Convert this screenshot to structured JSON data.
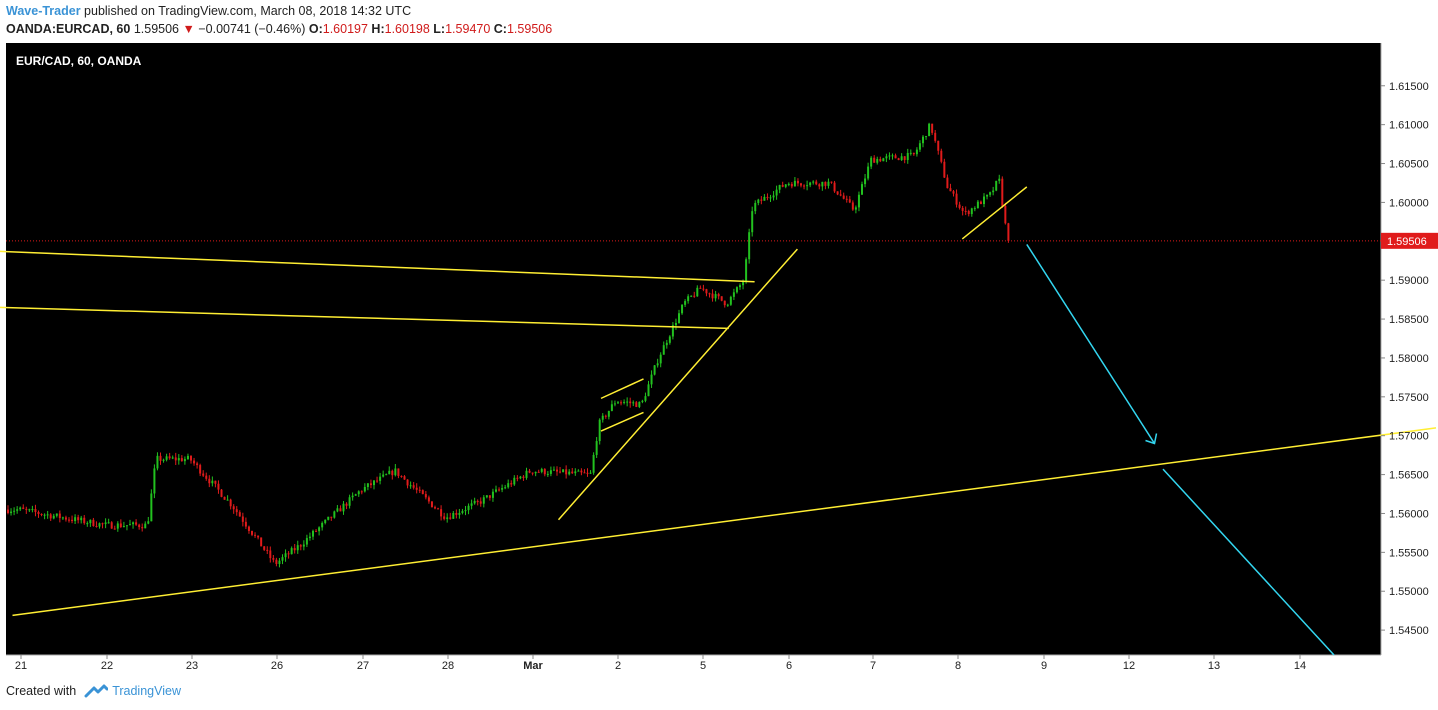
{
  "header": {
    "author": "Wave-Trader",
    "published_text": " published on TradingView.com, March 08, 2018 14:32 UTC",
    "symbol": "OANDA:EURCAD, 60",
    "last": "1.59506",
    "change": "−0.00741 (−0.46%)",
    "o_label": "O:",
    "o_val": "1.60197",
    "h_label": "H:",
    "h_val": "1.60198",
    "l_label": "L:",
    "l_val": "1.59470",
    "c_label": "C:",
    "c_val": "1.59506"
  },
  "footer": {
    "created_with": "Created with",
    "brand": "TradingView"
  },
  "colors": {
    "bull": "#22c11f",
    "bear": "#e01b1b",
    "background": "#000000",
    "trendline": "#ffee33",
    "projection": "#33d6f0",
    "price_tag": "#e01b1b"
  },
  "chart_data": {
    "type": "candlestick",
    "title": "EUR/CAD, 60, OANDA",
    "current_price": 1.59506,
    "current_price_label": "1.59506",
    "y_ticks": [
      "1.61500",
      "1.61000",
      "1.60500",
      "1.60000",
      "1.59000",
      "1.58500",
      "1.58000",
      "1.57500",
      "1.57000",
      "1.56500",
      "1.56000",
      "1.55500",
      "1.55000",
      "1.54500"
    ],
    "y_tick_values": [
      1.615,
      1.61,
      1.605,
      1.6,
      1.59,
      1.585,
      1.58,
      1.575,
      1.57,
      1.565,
      1.56,
      1.555,
      1.55,
      1.545
    ],
    "ylim": [
      1.5418,
      1.6205
    ],
    "x_ticks": [
      "21",
      "22",
      "23",
      "26",
      "27",
      "28",
      "Mar",
      "2",
      "5",
      "6",
      "7",
      "8",
      "9",
      "12",
      "13",
      "14"
    ],
    "price_anchors": [
      {
        "t": "21",
        "p": 1.5605
      },
      {
        "t": "22",
        "p": 1.5585
      },
      {
        "t": "22.5",
        "p": 1.5585
      },
      {
        "t": "22.6",
        "p": 1.567
      },
      {
        "t": "23",
        "p": 1.567
      },
      {
        "t": "23.5",
        "p": 1.561
      },
      {
        "t": "26",
        "p": 1.5535
      },
      {
        "t": "26.3",
        "p": 1.556
      },
      {
        "t": "27",
        "p": 1.563
      },
      {
        "t": "27.4",
        "p": 1.5655
      },
      {
        "t": "28",
        "p": 1.5595
      },
      {
        "t": "28.4",
        "p": 1.5615
      },
      {
        "t": "Mar",
        "p": 1.5655
      },
      {
        "t": "Mar+0.7",
        "p": 1.565
      },
      {
        "t": "Mar+0.8",
        "p": 1.5715
      },
      {
        "t": "2",
        "p": 1.5745
      },
      {
        "t": "2.3",
        "p": 1.574
      },
      {
        "t": "2.5",
        "p": 1.58
      },
      {
        "t": "2.8",
        "p": 1.587
      },
      {
        "t": "5",
        "p": 1.589
      },
      {
        "t": "5.3",
        "p": 1.587
      },
      {
        "t": "5.5",
        "p": 1.59
      },
      {
        "t": "5.6",
        "p": 1.5995
      },
      {
        "t": "6",
        "p": 1.6025
      },
      {
        "t": "6.5",
        "p": 1.6025
      },
      {
        "t": "6.8",
        "p": 1.599
      },
      {
        "t": "7",
        "p": 1.6055
      },
      {
        "t": "7.5",
        "p": 1.606
      },
      {
        "t": "7.7",
        "p": 1.61
      },
      {
        "t": "7.9",
        "p": 1.602
      },
      {
        "t": "8.1",
        "p": 1.5985
      },
      {
        "t": "8.4",
        "p": 1.601
      },
      {
        "t": "8.5",
        "p": 1.603
      },
      {
        "t": "8.6",
        "p": 1.59506
      }
    ],
    "overlays": {
      "long_support_line": {
        "from": {
          "t": "20.9",
          "p": 1.5469
        },
        "to": {
          "t": "15.6",
          "p": 1.571
        }
      },
      "main_uptrend_line": {
        "from": {
          "t": "Mar+0.3",
          "p": 1.5592
        },
        "to": {
          "t": "6.1",
          "p": 1.594
        }
      },
      "flag_1_upper": {
        "from": {
          "t": "Mar+0.8",
          "p": 1.5748
        },
        "to": {
          "t": "2.3",
          "p": 1.5773
        }
      },
      "flag_1_lower": {
        "from": {
          "t": "Mar+0.8",
          "p": 1.5706
        },
        "to": {
          "t": "2.3",
          "p": 1.573
        }
      },
      "flag_2_upper": {
        "from": {
          "t": "4.9",
          "p": 1.5937
        },
        "to": {
          "t": "5.6",
          "p": 1.5898
        }
      },
      "flag_2_lower": {
        "from": {
          "t": "4.9",
          "p": 1.5865
        },
        "to": {
          "t": "5.3",
          "p": 1.5838
        }
      },
      "break_line": {
        "from": {
          "t": "8.05",
          "p": 1.5953
        },
        "to": {
          "t": "8.8",
          "p": 1.602
        }
      },
      "projection_1": {
        "from": {
          "t": "8.8",
          "p": 1.5946
        },
        "to": {
          "t": "12.3",
          "p": 1.569
        }
      },
      "projection_2": {
        "from": {
          "t": "12.4",
          "p": 1.5657
        },
        "to": {
          "t": "14.4",
          "p": 1.5418
        }
      }
    }
  }
}
